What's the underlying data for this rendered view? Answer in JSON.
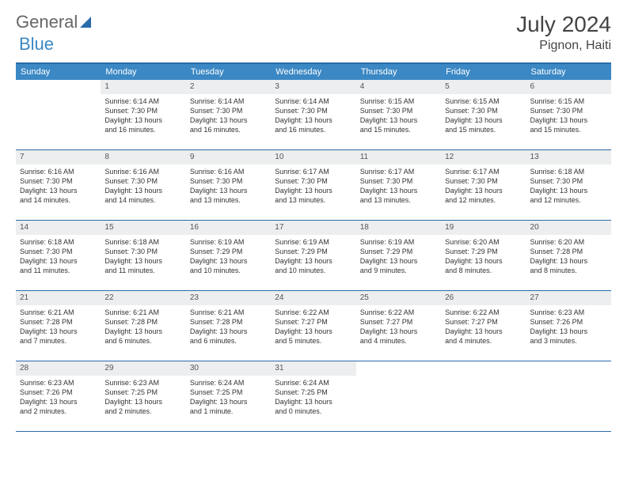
{
  "brand": {
    "part1": "General",
    "part2": "Blue"
  },
  "title": "July 2024",
  "location": "Pignon, Haiti",
  "colors": {
    "header_bg": "#3b88c4",
    "border": "#2a6aa8",
    "daynum_bg": "#eceeef",
    "text": "#333333"
  },
  "day_names": [
    "Sunday",
    "Monday",
    "Tuesday",
    "Wednesday",
    "Thursday",
    "Friday",
    "Saturday"
  ],
  "weeks": [
    [
      {
        "n": "",
        "rise": "",
        "set": "",
        "dl1": "",
        "dl2": ""
      },
      {
        "n": "1",
        "rise": "Sunrise: 6:14 AM",
        "set": "Sunset: 7:30 PM",
        "dl1": "Daylight: 13 hours",
        "dl2": "and 16 minutes."
      },
      {
        "n": "2",
        "rise": "Sunrise: 6:14 AM",
        "set": "Sunset: 7:30 PM",
        "dl1": "Daylight: 13 hours",
        "dl2": "and 16 minutes."
      },
      {
        "n": "3",
        "rise": "Sunrise: 6:14 AM",
        "set": "Sunset: 7:30 PM",
        "dl1": "Daylight: 13 hours",
        "dl2": "and 16 minutes."
      },
      {
        "n": "4",
        "rise": "Sunrise: 6:15 AM",
        "set": "Sunset: 7:30 PM",
        "dl1": "Daylight: 13 hours",
        "dl2": "and 15 minutes."
      },
      {
        "n": "5",
        "rise": "Sunrise: 6:15 AM",
        "set": "Sunset: 7:30 PM",
        "dl1": "Daylight: 13 hours",
        "dl2": "and 15 minutes."
      },
      {
        "n": "6",
        "rise": "Sunrise: 6:15 AM",
        "set": "Sunset: 7:30 PM",
        "dl1": "Daylight: 13 hours",
        "dl2": "and 15 minutes."
      }
    ],
    [
      {
        "n": "7",
        "rise": "Sunrise: 6:16 AM",
        "set": "Sunset: 7:30 PM",
        "dl1": "Daylight: 13 hours",
        "dl2": "and 14 minutes."
      },
      {
        "n": "8",
        "rise": "Sunrise: 6:16 AM",
        "set": "Sunset: 7:30 PM",
        "dl1": "Daylight: 13 hours",
        "dl2": "and 14 minutes."
      },
      {
        "n": "9",
        "rise": "Sunrise: 6:16 AM",
        "set": "Sunset: 7:30 PM",
        "dl1": "Daylight: 13 hours",
        "dl2": "and 13 minutes."
      },
      {
        "n": "10",
        "rise": "Sunrise: 6:17 AM",
        "set": "Sunset: 7:30 PM",
        "dl1": "Daylight: 13 hours",
        "dl2": "and 13 minutes."
      },
      {
        "n": "11",
        "rise": "Sunrise: 6:17 AM",
        "set": "Sunset: 7:30 PM",
        "dl1": "Daylight: 13 hours",
        "dl2": "and 13 minutes."
      },
      {
        "n": "12",
        "rise": "Sunrise: 6:17 AM",
        "set": "Sunset: 7:30 PM",
        "dl1": "Daylight: 13 hours",
        "dl2": "and 12 minutes."
      },
      {
        "n": "13",
        "rise": "Sunrise: 6:18 AM",
        "set": "Sunset: 7:30 PM",
        "dl1": "Daylight: 13 hours",
        "dl2": "and 12 minutes."
      }
    ],
    [
      {
        "n": "14",
        "rise": "Sunrise: 6:18 AM",
        "set": "Sunset: 7:30 PM",
        "dl1": "Daylight: 13 hours",
        "dl2": "and 11 minutes."
      },
      {
        "n": "15",
        "rise": "Sunrise: 6:18 AM",
        "set": "Sunset: 7:30 PM",
        "dl1": "Daylight: 13 hours",
        "dl2": "and 11 minutes."
      },
      {
        "n": "16",
        "rise": "Sunrise: 6:19 AM",
        "set": "Sunset: 7:29 PM",
        "dl1": "Daylight: 13 hours",
        "dl2": "and 10 minutes."
      },
      {
        "n": "17",
        "rise": "Sunrise: 6:19 AM",
        "set": "Sunset: 7:29 PM",
        "dl1": "Daylight: 13 hours",
        "dl2": "and 10 minutes."
      },
      {
        "n": "18",
        "rise": "Sunrise: 6:19 AM",
        "set": "Sunset: 7:29 PM",
        "dl1": "Daylight: 13 hours",
        "dl2": "and 9 minutes."
      },
      {
        "n": "19",
        "rise": "Sunrise: 6:20 AM",
        "set": "Sunset: 7:29 PM",
        "dl1": "Daylight: 13 hours",
        "dl2": "and 8 minutes."
      },
      {
        "n": "20",
        "rise": "Sunrise: 6:20 AM",
        "set": "Sunset: 7:28 PM",
        "dl1": "Daylight: 13 hours",
        "dl2": "and 8 minutes."
      }
    ],
    [
      {
        "n": "21",
        "rise": "Sunrise: 6:21 AM",
        "set": "Sunset: 7:28 PM",
        "dl1": "Daylight: 13 hours",
        "dl2": "and 7 minutes."
      },
      {
        "n": "22",
        "rise": "Sunrise: 6:21 AM",
        "set": "Sunset: 7:28 PM",
        "dl1": "Daylight: 13 hours",
        "dl2": "and 6 minutes."
      },
      {
        "n": "23",
        "rise": "Sunrise: 6:21 AM",
        "set": "Sunset: 7:28 PM",
        "dl1": "Daylight: 13 hours",
        "dl2": "and 6 minutes."
      },
      {
        "n": "24",
        "rise": "Sunrise: 6:22 AM",
        "set": "Sunset: 7:27 PM",
        "dl1": "Daylight: 13 hours",
        "dl2": "and 5 minutes."
      },
      {
        "n": "25",
        "rise": "Sunrise: 6:22 AM",
        "set": "Sunset: 7:27 PM",
        "dl1": "Daylight: 13 hours",
        "dl2": "and 4 minutes."
      },
      {
        "n": "26",
        "rise": "Sunrise: 6:22 AM",
        "set": "Sunset: 7:27 PM",
        "dl1": "Daylight: 13 hours",
        "dl2": "and 4 minutes."
      },
      {
        "n": "27",
        "rise": "Sunrise: 6:23 AM",
        "set": "Sunset: 7:26 PM",
        "dl1": "Daylight: 13 hours",
        "dl2": "and 3 minutes."
      }
    ],
    [
      {
        "n": "28",
        "rise": "Sunrise: 6:23 AM",
        "set": "Sunset: 7:26 PM",
        "dl1": "Daylight: 13 hours",
        "dl2": "and 2 minutes."
      },
      {
        "n": "29",
        "rise": "Sunrise: 6:23 AM",
        "set": "Sunset: 7:25 PM",
        "dl1": "Daylight: 13 hours",
        "dl2": "and 2 minutes."
      },
      {
        "n": "30",
        "rise": "Sunrise: 6:24 AM",
        "set": "Sunset: 7:25 PM",
        "dl1": "Daylight: 13 hours",
        "dl2": "and 1 minute."
      },
      {
        "n": "31",
        "rise": "Sunrise: 6:24 AM",
        "set": "Sunset: 7:25 PM",
        "dl1": "Daylight: 13 hours",
        "dl2": "and 0 minutes."
      },
      {
        "n": "",
        "rise": "",
        "set": "",
        "dl1": "",
        "dl2": ""
      },
      {
        "n": "",
        "rise": "",
        "set": "",
        "dl1": "",
        "dl2": ""
      },
      {
        "n": "",
        "rise": "",
        "set": "",
        "dl1": "",
        "dl2": ""
      }
    ]
  ]
}
